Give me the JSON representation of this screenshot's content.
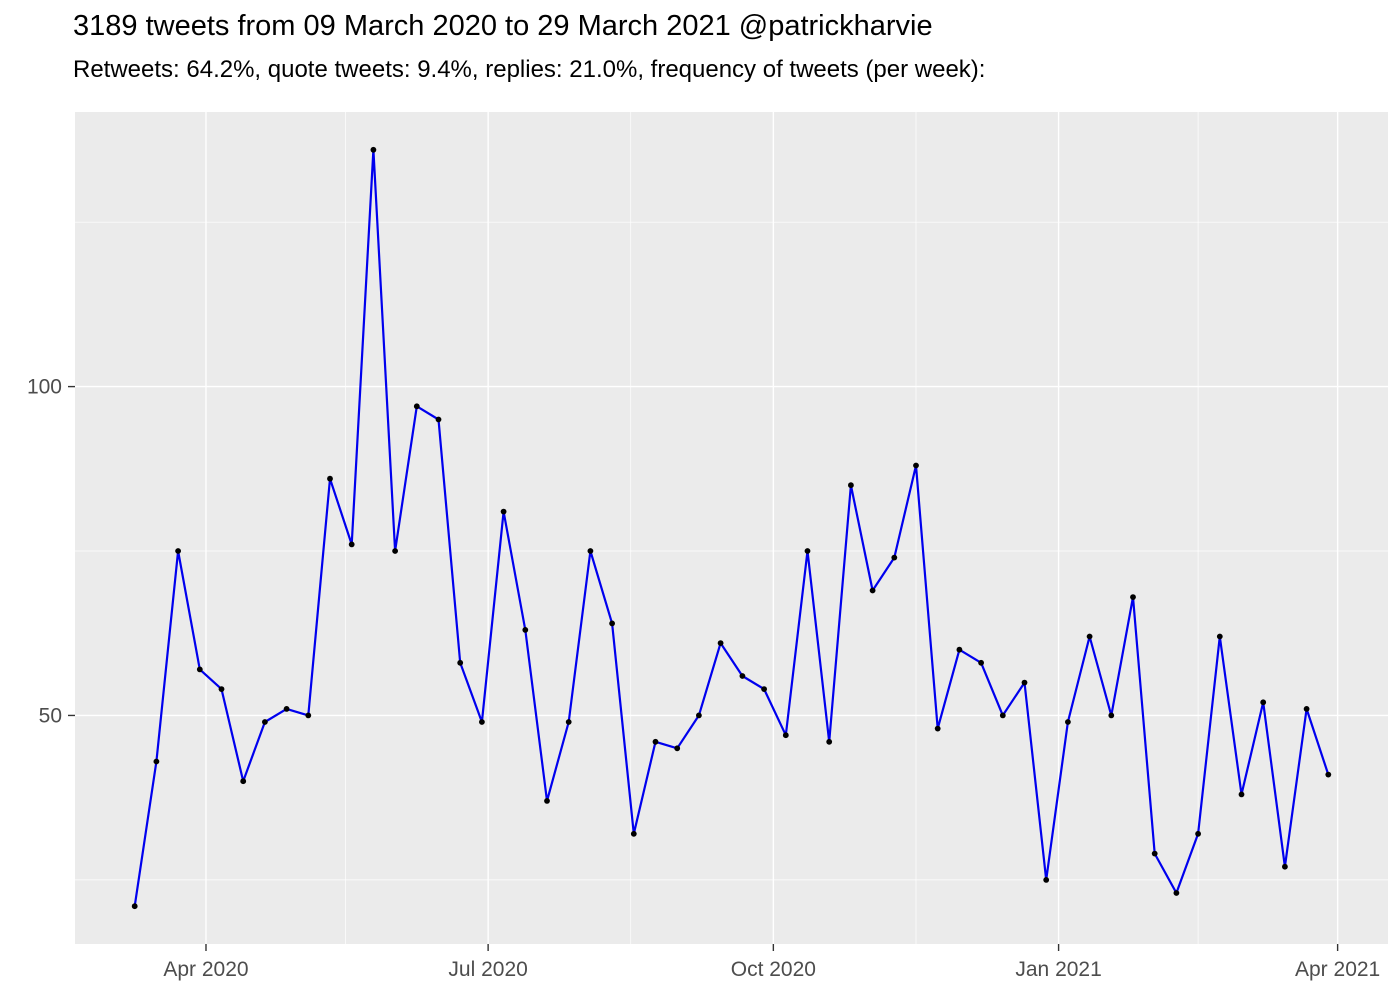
{
  "chart_data": {
    "type": "line",
    "title": "3189 tweets from 09 March 2020 to 29 March 2021 @patrickharvie",
    "subtitle": "Retweets: 64.2%, quote tweets: 9.4%, replies: 21.0%, frequency of tweets (per week):",
    "series_name": "tweets_per_week",
    "x": [
      "2020-03-09",
      "2020-03-16",
      "2020-03-23",
      "2020-03-30",
      "2020-04-06",
      "2020-04-13",
      "2020-04-20",
      "2020-04-27",
      "2020-05-04",
      "2020-05-11",
      "2020-05-18",
      "2020-05-25",
      "2020-06-01",
      "2020-06-08",
      "2020-06-15",
      "2020-06-22",
      "2020-06-29",
      "2020-07-06",
      "2020-07-13",
      "2020-07-20",
      "2020-07-27",
      "2020-08-03",
      "2020-08-10",
      "2020-08-17",
      "2020-08-24",
      "2020-08-31",
      "2020-09-07",
      "2020-09-14",
      "2020-09-21",
      "2020-09-28",
      "2020-10-05",
      "2020-10-12",
      "2020-10-19",
      "2020-10-26",
      "2020-11-02",
      "2020-11-09",
      "2020-11-16",
      "2020-11-23",
      "2020-11-30",
      "2020-12-07",
      "2020-12-14",
      "2020-12-21",
      "2020-12-28",
      "2021-01-04",
      "2021-01-11",
      "2021-01-18",
      "2021-01-25",
      "2021-02-01",
      "2021-02-08",
      "2021-02-15",
      "2021-02-22",
      "2021-03-01",
      "2021-03-08",
      "2021-03-15",
      "2021-03-22",
      "2021-03-29"
    ],
    "values": [
      21,
      43,
      75,
      57,
      54,
      40,
      49,
      51,
      50,
      86,
      76,
      136,
      75,
      97,
      95,
      58,
      49,
      81,
      63,
      37,
      49,
      75,
      64,
      32,
      46,
      45,
      50,
      61,
      56,
      54,
      47,
      75,
      46,
      85,
      69,
      74,
      88,
      48,
      60,
      58,
      50,
      55,
      25,
      49,
      62,
      50,
      68,
      29,
      23,
      32,
      62,
      38,
      52,
      27,
      51,
      41
    ],
    "total_tweets": 3189,
    "xlabel": "",
    "ylabel": "",
    "x_tick_labels": [
      "Apr 2020",
      "Jul 2020",
      "Oct 2020",
      "Jan 2021",
      "Apr 2021"
    ],
    "x_major_breaks": [
      "2020-04-01",
      "2020-07-01",
      "2020-10-01",
      "2021-01-01",
      "2021-04-01"
    ],
    "x_minor_breaks": [
      "2020-02-15",
      "2020-05-16",
      "2020-08-16",
      "2020-11-16",
      "2021-02-15"
    ],
    "y_tick_labels": [
      "50",
      "100"
    ],
    "y_major_breaks": [
      50,
      100
    ],
    "y_minor_breaks": [
      25,
      75,
      125
    ],
    "ylim_data": [
      21,
      136
    ],
    "grid": "on",
    "legend": "none",
    "colors": {
      "line": "#0000EE",
      "point": "#000000",
      "panel_bg": "#EBEBEB",
      "grid": "#FFFFFF",
      "axis_text": "#4D4D4D",
      "tick": "#333333",
      "title_text": "#000000"
    }
  }
}
